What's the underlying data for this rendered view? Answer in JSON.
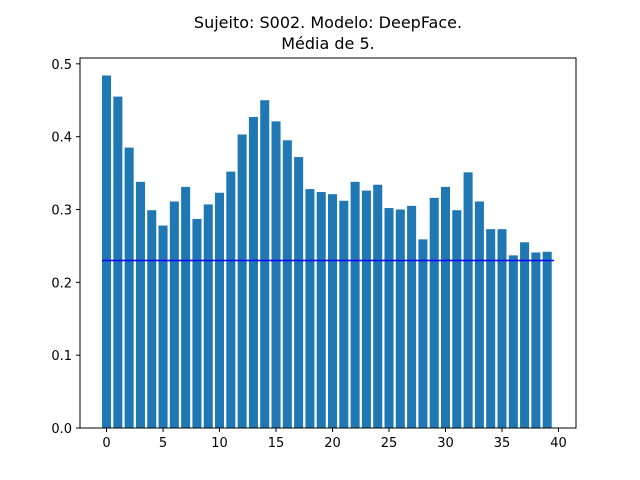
{
  "chart_data": {
    "type": "bar",
    "title": "Sujeito: S002. Modelo: DeepFace.",
    "subtitle": "Média de 5.",
    "xlabel": "",
    "ylabel": "",
    "x": [
      0,
      1,
      2,
      3,
      4,
      5,
      6,
      7,
      8,
      9,
      10,
      11,
      12,
      13,
      14,
      15,
      16,
      17,
      18,
      19,
      20,
      21,
      22,
      23,
      24,
      25,
      26,
      27,
      28,
      29,
      30,
      31,
      32,
      33,
      34,
      35,
      36,
      37,
      38,
      39
    ],
    "values": [
      0.484,
      0.455,
      0.385,
      0.338,
      0.299,
      0.278,
      0.311,
      0.331,
      0.287,
      0.307,
      0.323,
      0.352,
      0.403,
      0.427,
      0.45,
      0.421,
      0.395,
      0.372,
      0.328,
      0.324,
      0.321,
      0.312,
      0.338,
      0.326,
      0.334,
      0.302,
      0.3,
      0.305,
      0.259,
      0.316,
      0.331,
      0.299,
      0.351,
      0.311,
      0.273,
      0.273,
      0.237,
      0.255,
      0.241,
      0.242
    ],
    "bar_color": "#1f77b4",
    "reference_line": {
      "y": 0.23,
      "x_from": -0.4,
      "x_to": 39.6,
      "color": "#0000ff"
    },
    "xlim": [
      -2.35,
      41.55
    ],
    "ylim": [
      0,
      0.508
    ],
    "xticks": [
      0,
      5,
      10,
      15,
      20,
      25,
      30,
      35,
      40
    ],
    "yticks": [
      0.0,
      0.1,
      0.2,
      0.3,
      0.4,
      0.5
    ],
    "ytick_labels": [
      "0.0",
      "0.1",
      "0.2",
      "0.3",
      "0.4",
      "0.5"
    ],
    "grid": false,
    "legend": "none"
  }
}
